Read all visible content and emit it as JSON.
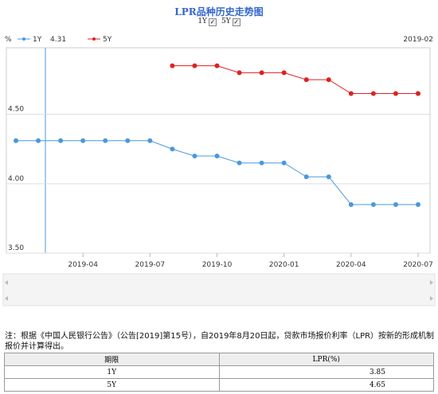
{
  "title": "LPR品种历史走势图",
  "controls": [
    {
      "label": "1Y",
      "checked": true
    },
    {
      "label": "5Y",
      "checked": true
    }
  ],
  "chart_data": {
    "type": "line",
    "y_label": "%",
    "categories": [
      null,
      null,
      null,
      "2019-04",
      null,
      null,
      "2019-07",
      null,
      null,
      "2019-10",
      null,
      null,
      "2020-01",
      null,
      null,
      "2020-04",
      null,
      null,
      "2020-07"
    ],
    "series": [
      {
        "name": "1Y",
        "color": "#4a98de",
        "values": [
          4.31,
          4.31,
          4.31,
          4.31,
          4.31,
          4.31,
          4.31,
          4.25,
          4.2,
          4.2,
          4.15,
          4.15,
          4.15,
          4.05,
          4.05,
          3.85,
          3.85,
          3.85,
          3.85
        ]
      },
      {
        "name": "5Y",
        "color": "#e02020",
        "values": [
          null,
          null,
          null,
          null,
          null,
          null,
          null,
          4.85,
          4.85,
          4.85,
          4.8,
          4.8,
          4.8,
          4.75,
          4.75,
          4.65,
          4.65,
          4.65,
          4.65
        ]
      }
    ],
    "ylim": [
      3.5,
      4.98
    ],
    "yticks": [
      {
        "value": 3.5,
        "label": "3.50"
      },
      {
        "value": 4.0,
        "label": "4.00"
      },
      {
        "value": 4.5,
        "label": "4.50"
      }
    ],
    "grid": true,
    "hover": {
      "value": 4.31,
      "date": "2019-02"
    }
  },
  "note": "注：根据《中国人民银行公告》（公告[2019]第15号），自2019年8月20日起，贷款市场报价利率（LPR）按新的形成机制报价并计算得出。",
  "table": {
    "header": [
      "期限",
      "LPR(%)"
    ],
    "rows": [
      [
        "1Y",
        3.85
      ],
      [
        "5Y",
        4.65
      ]
    ]
  }
}
